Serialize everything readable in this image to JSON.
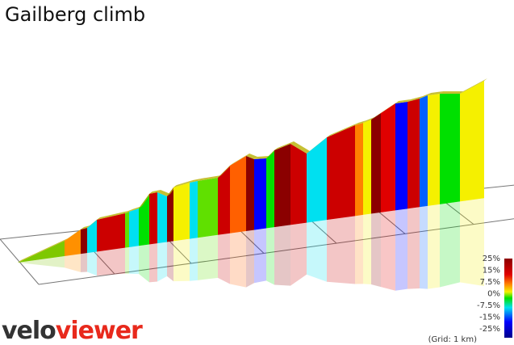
{
  "header": {
    "title": "Gailberg climb"
  },
  "legend": {
    "labels": [
      "25%",
      "15%",
      "7.5%",
      "0%",
      "-7.5%",
      "-15%",
      "-25%"
    ],
    "grid_note": "(Grid: 1 km)"
  },
  "logo": {
    "part1": "velo",
    "part2": "viewer"
  }
}
